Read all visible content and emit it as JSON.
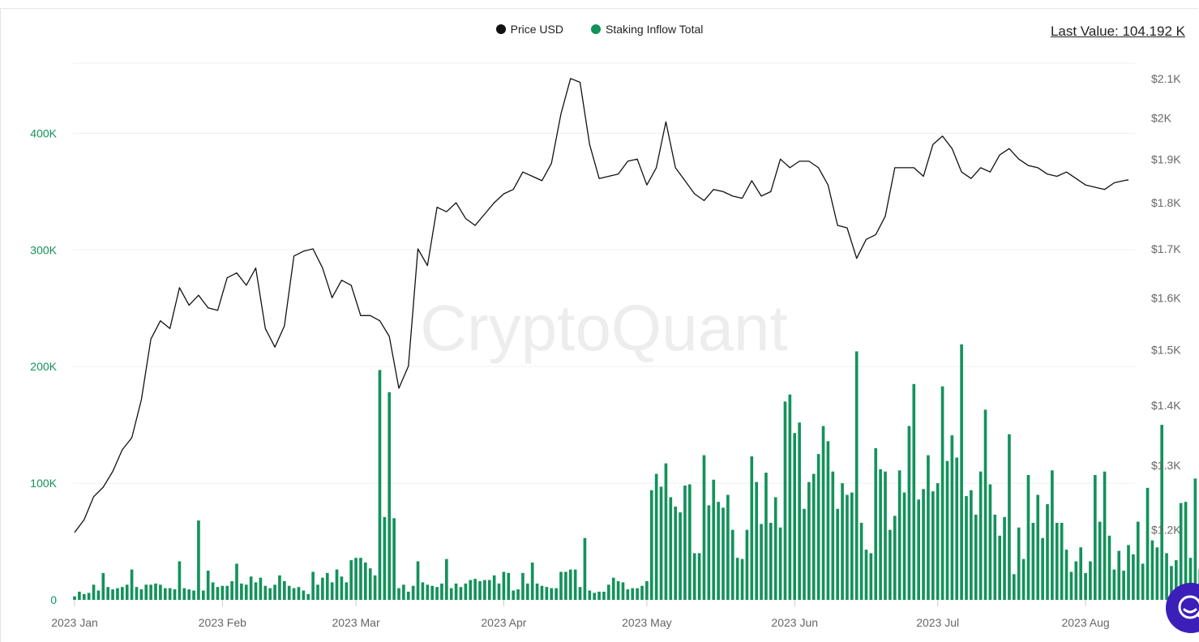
{
  "legend": {
    "price_label": "Price USD",
    "inflow_label": "Staking Inflow Total",
    "price_color": "#111111",
    "inflow_color": "#13925a"
  },
  "last_value": "Last Value: 104.192 K",
  "watermark": "CryptoQuant",
  "chart_data": {
    "type": "bar+line",
    "x_tick_labels": [
      "2023 Jan",
      "2023 Feb",
      "2023 Mar",
      "2023 Apr",
      "2023 May",
      "2023 Jun",
      "2023 Jul",
      "2023 Aug"
    ],
    "x_tick_dates": [
      "2023-01-01",
      "2023-02-01",
      "2023-03-01",
      "2023-04-01",
      "2023-05-01",
      "2023-06-01",
      "2023-07-01",
      "2023-08-01"
    ],
    "x_range": [
      "2023-01-01",
      "2023-08-10"
    ],
    "left_axis": {
      "ylim": [
        0,
        460000
      ],
      "tick_values": [
        0,
        100000,
        200000,
        300000,
        400000
      ],
      "tick_labels": [
        "0",
        "100K",
        "200K",
        "300K",
        "400K"
      ],
      "color": "#13925a"
    },
    "right_axis": {
      "scale": "log",
      "ylim": [
        1.1,
        2.14
      ],
      "tick_values": [
        1.2,
        1.3,
        1.4,
        1.5,
        1.6,
        1.7,
        1.8,
        1.9,
        2.0,
        2.1
      ],
      "tick_labels": [
        "$1.2K",
        "$1.3K",
        "$1.4K",
        "$1.5K",
        "$1.6K",
        "$1.7K",
        "$1.8K",
        "$1.9K",
        "$2K",
        "$2.1K"
      ],
      "unit": "thousand USD",
      "color": "#666666"
    },
    "grid": true,
    "legend_position": "top-center",
    "series": [
      {
        "name": "Price USD",
        "type": "line",
        "color": "#111111",
        "points": [
          [
            "2023-01-01",
            1.196
          ],
          [
            "2023-01-03",
            1.215
          ],
          [
            "2023-01-05",
            1.25
          ],
          [
            "2023-01-07",
            1.265
          ],
          [
            "2023-01-09",
            1.29
          ],
          [
            "2023-01-11",
            1.325
          ],
          [
            "2023-01-13",
            1.345
          ],
          [
            "2023-01-15",
            1.41
          ],
          [
            "2023-01-17",
            1.52
          ],
          [
            "2023-01-19",
            1.555
          ],
          [
            "2023-01-21",
            1.54
          ],
          [
            "2023-01-23",
            1.62
          ],
          [
            "2023-01-25",
            1.585
          ],
          [
            "2023-01-27",
            1.605
          ],
          [
            "2023-01-29",
            1.58
          ],
          [
            "2023-01-31",
            1.575
          ],
          [
            "2023-02-02",
            1.64
          ],
          [
            "2023-02-04",
            1.65
          ],
          [
            "2023-02-06",
            1.625
          ],
          [
            "2023-02-08",
            1.66
          ],
          [
            "2023-02-10",
            1.54
          ],
          [
            "2023-02-12",
            1.505
          ],
          [
            "2023-02-14",
            1.545
          ],
          [
            "2023-02-16",
            1.685
          ],
          [
            "2023-02-18",
            1.695
          ],
          [
            "2023-02-20",
            1.7
          ],
          [
            "2023-02-22",
            1.66
          ],
          [
            "2023-02-24",
            1.6
          ],
          [
            "2023-02-26",
            1.635
          ],
          [
            "2023-02-28",
            1.625
          ],
          [
            "2023-03-02",
            1.565
          ],
          [
            "2023-03-04",
            1.565
          ],
          [
            "2023-03-06",
            1.555
          ],
          [
            "2023-03-08",
            1.525
          ],
          [
            "2023-03-10",
            1.43
          ],
          [
            "2023-03-12",
            1.47
          ],
          [
            "2023-03-14",
            1.7
          ],
          [
            "2023-03-16",
            1.665
          ],
          [
            "2023-03-18",
            1.79
          ],
          [
            "2023-03-20",
            1.78
          ],
          [
            "2023-03-22",
            1.8
          ],
          [
            "2023-03-24",
            1.765
          ],
          [
            "2023-03-26",
            1.75
          ],
          [
            "2023-03-28",
            1.775
          ],
          [
            "2023-03-30",
            1.8
          ],
          [
            "2023-04-01",
            1.82
          ],
          [
            "2023-04-03",
            1.83
          ],
          [
            "2023-04-05",
            1.87
          ],
          [
            "2023-04-07",
            1.86
          ],
          [
            "2023-04-09",
            1.85
          ],
          [
            "2023-04-11",
            1.89
          ],
          [
            "2023-04-13",
            2.01
          ],
          [
            "2023-04-15",
            2.1
          ],
          [
            "2023-04-17",
            2.09
          ],
          [
            "2023-04-19",
            1.935
          ],
          [
            "2023-04-21",
            1.855
          ],
          [
            "2023-04-23",
            1.86
          ],
          [
            "2023-04-25",
            1.865
          ],
          [
            "2023-04-27",
            1.895
          ],
          [
            "2023-04-29",
            1.9
          ],
          [
            "2023-05-01",
            1.84
          ],
          [
            "2023-05-03",
            1.88
          ],
          [
            "2023-05-05",
            1.99
          ],
          [
            "2023-05-07",
            1.88
          ],
          [
            "2023-05-09",
            1.85
          ],
          [
            "2023-05-11",
            1.82
          ],
          [
            "2023-05-13",
            1.805
          ],
          [
            "2023-05-15",
            1.83
          ],
          [
            "2023-05-17",
            1.825
          ],
          [
            "2023-05-19",
            1.815
          ],
          [
            "2023-05-21",
            1.81
          ],
          [
            "2023-05-23",
            1.85
          ],
          [
            "2023-05-25",
            1.815
          ],
          [
            "2023-05-27",
            1.825
          ],
          [
            "2023-05-29",
            1.9
          ],
          [
            "2023-05-31",
            1.88
          ],
          [
            "2023-06-02",
            1.895
          ],
          [
            "2023-06-04",
            1.895
          ],
          [
            "2023-06-06",
            1.88
          ],
          [
            "2023-06-08",
            1.84
          ],
          [
            "2023-06-10",
            1.75
          ],
          [
            "2023-06-12",
            1.745
          ],
          [
            "2023-06-14",
            1.68
          ],
          [
            "2023-06-16",
            1.72
          ],
          [
            "2023-06-18",
            1.73
          ],
          [
            "2023-06-20",
            1.77
          ],
          [
            "2023-06-22",
            1.88
          ],
          [
            "2023-06-24",
            1.88
          ],
          [
            "2023-06-26",
            1.88
          ],
          [
            "2023-06-28",
            1.86
          ],
          [
            "2023-06-30",
            1.935
          ],
          [
            "2023-07-02",
            1.955
          ],
          [
            "2023-07-04",
            1.925
          ],
          [
            "2023-07-06",
            1.87
          ],
          [
            "2023-07-08",
            1.855
          ],
          [
            "2023-07-10",
            1.88
          ],
          [
            "2023-07-12",
            1.87
          ],
          [
            "2023-07-14",
            1.91
          ],
          [
            "2023-07-16",
            1.925
          ],
          [
            "2023-07-18",
            1.9
          ],
          [
            "2023-07-20",
            1.885
          ],
          [
            "2023-07-22",
            1.88
          ],
          [
            "2023-07-24",
            1.865
          ],
          [
            "2023-07-26",
            1.86
          ],
          [
            "2023-07-28",
            1.87
          ],
          [
            "2023-07-30",
            1.855
          ],
          [
            "2023-08-01",
            1.84
          ],
          [
            "2023-08-03",
            1.835
          ],
          [
            "2023-08-05",
            1.83
          ],
          [
            "2023-08-07",
            1.845
          ],
          [
            "2023-08-09",
            1.85
          ],
          [
            "2023-08-10",
            1.852
          ]
        ]
      },
      {
        "name": "Staking Inflow Total",
        "type": "bar",
        "color": "#13925a",
        "start_date": "2023-01-01",
        "step": "1 day",
        "values": [
          3000,
          7000,
          5000,
          6000,
          13000,
          8000,
          23000,
          11000,
          9000,
          10000,
          11000,
          13000,
          26000,
          11000,
          9000,
          13000,
          13000,
          14000,
          13000,
          10000,
          10000,
          9000,
          33000,
          10000,
          9000,
          8000,
          68000,
          8000,
          25000,
          15000,
          11000,
          12000,
          12000,
          16000,
          31000,
          14000,
          13000,
          20000,
          15000,
          19000,
          12000,
          10000,
          13000,
          21000,
          16000,
          12000,
          10000,
          11000,
          8000,
          5000,
          24000,
          13000,
          19000,
          23000,
          15000,
          26000,
          20000,
          15000,
          34000,
          36000,
          36000,
          32000,
          27000,
          21000,
          197000,
          71000,
          178000,
          70000,
          10000,
          13000,
          7000,
          12000,
          33000,
          15000,
          13000,
          12000,
          11000,
          14000,
          35000,
          10000,
          14000,
          11000,
          14000,
          17000,
          18000,
          16000,
          17000,
          17000,
          21000,
          14000,
          24000,
          23000,
          8000,
          9000,
          23000,
          14000,
          32000,
          14000,
          12000,
          11000,
          10000,
          10000,
          24000,
          24000,
          26000,
          26000,
          11000,
          53000,
          8000,
          6000,
          7000,
          7000,
          13000,
          19000,
          16000,
          15000,
          9000,
          10000,
          10000,
          12000,
          16000,
          94000,
          108000,
          97000,
          117000,
          88000,
          80000,
          75000,
          98000,
          99000,
          40000,
          40000,
          124000,
          81000,
          103000,
          84000,
          79000,
          90000,
          60000,
          36000,
          35000,
          60000,
          123000,
          101000,
          65000,
          109000,
          66000,
          88000,
          62000,
          170000,
          176000,
          143000,
          152000,
          78000,
          101000,
          108000,
          125000,
          149000,
          136000,
          110000,
          78000,
          100000,
          90000,
          92000,
          213000,
          66000,
          43000,
          40000,
          130000,
          112000,
          110000,
          60000,
          72000,
          111000,
          92000,
          149000,
          185000,
          86000,
          95000,
          124000,
          93000,
          100000,
          183000,
          119000,
          141000,
          122000,
          219000,
          89000,
          94000,
          73000,
          110000,
          163000,
          99000,
          73000,
          55000,
          71000,
          142000,
          22000,
          62000,
          35000,
          107000,
          66000,
          90000,
          53000,
          82000,
          111000,
          66000,
          66000,
          43000,
          24000,
          33000,
          45000,
          23000,
          33000,
          107000,
          67000,
          110000,
          55000,
          26000,
          42000,
          25000,
          47000,
          39000,
          67000,
          31000,
          96000,
          51000,
          45000,
          150000,
          40000,
          29000,
          34000,
          83000,
          84000,
          36000,
          104000,
          26000,
          28000,
          35000,
          31000,
          41000,
          29000,
          43000,
          84000,
          26000,
          26000,
          28000,
          41000,
          34000,
          44000,
          30000,
          52000,
          29000,
          38000,
          33000,
          34000,
          26000,
          24000,
          38000,
          26000,
          33000,
          43000,
          48000,
          83000,
          81000,
          30000,
          25000,
          34000,
          38000,
          35000,
          62000,
          65000,
          140000,
          31000,
          83000,
          25000,
          37000,
          57000,
          38000,
          63000,
          32000,
          77000,
          45000,
          60000,
          53000,
          57000,
          87000,
          94000,
          124000,
          40000,
          35000,
          30000,
          33000,
          45000,
          24000,
          43000,
          47000,
          52000,
          65000,
          104192
        ]
      }
    ]
  }
}
